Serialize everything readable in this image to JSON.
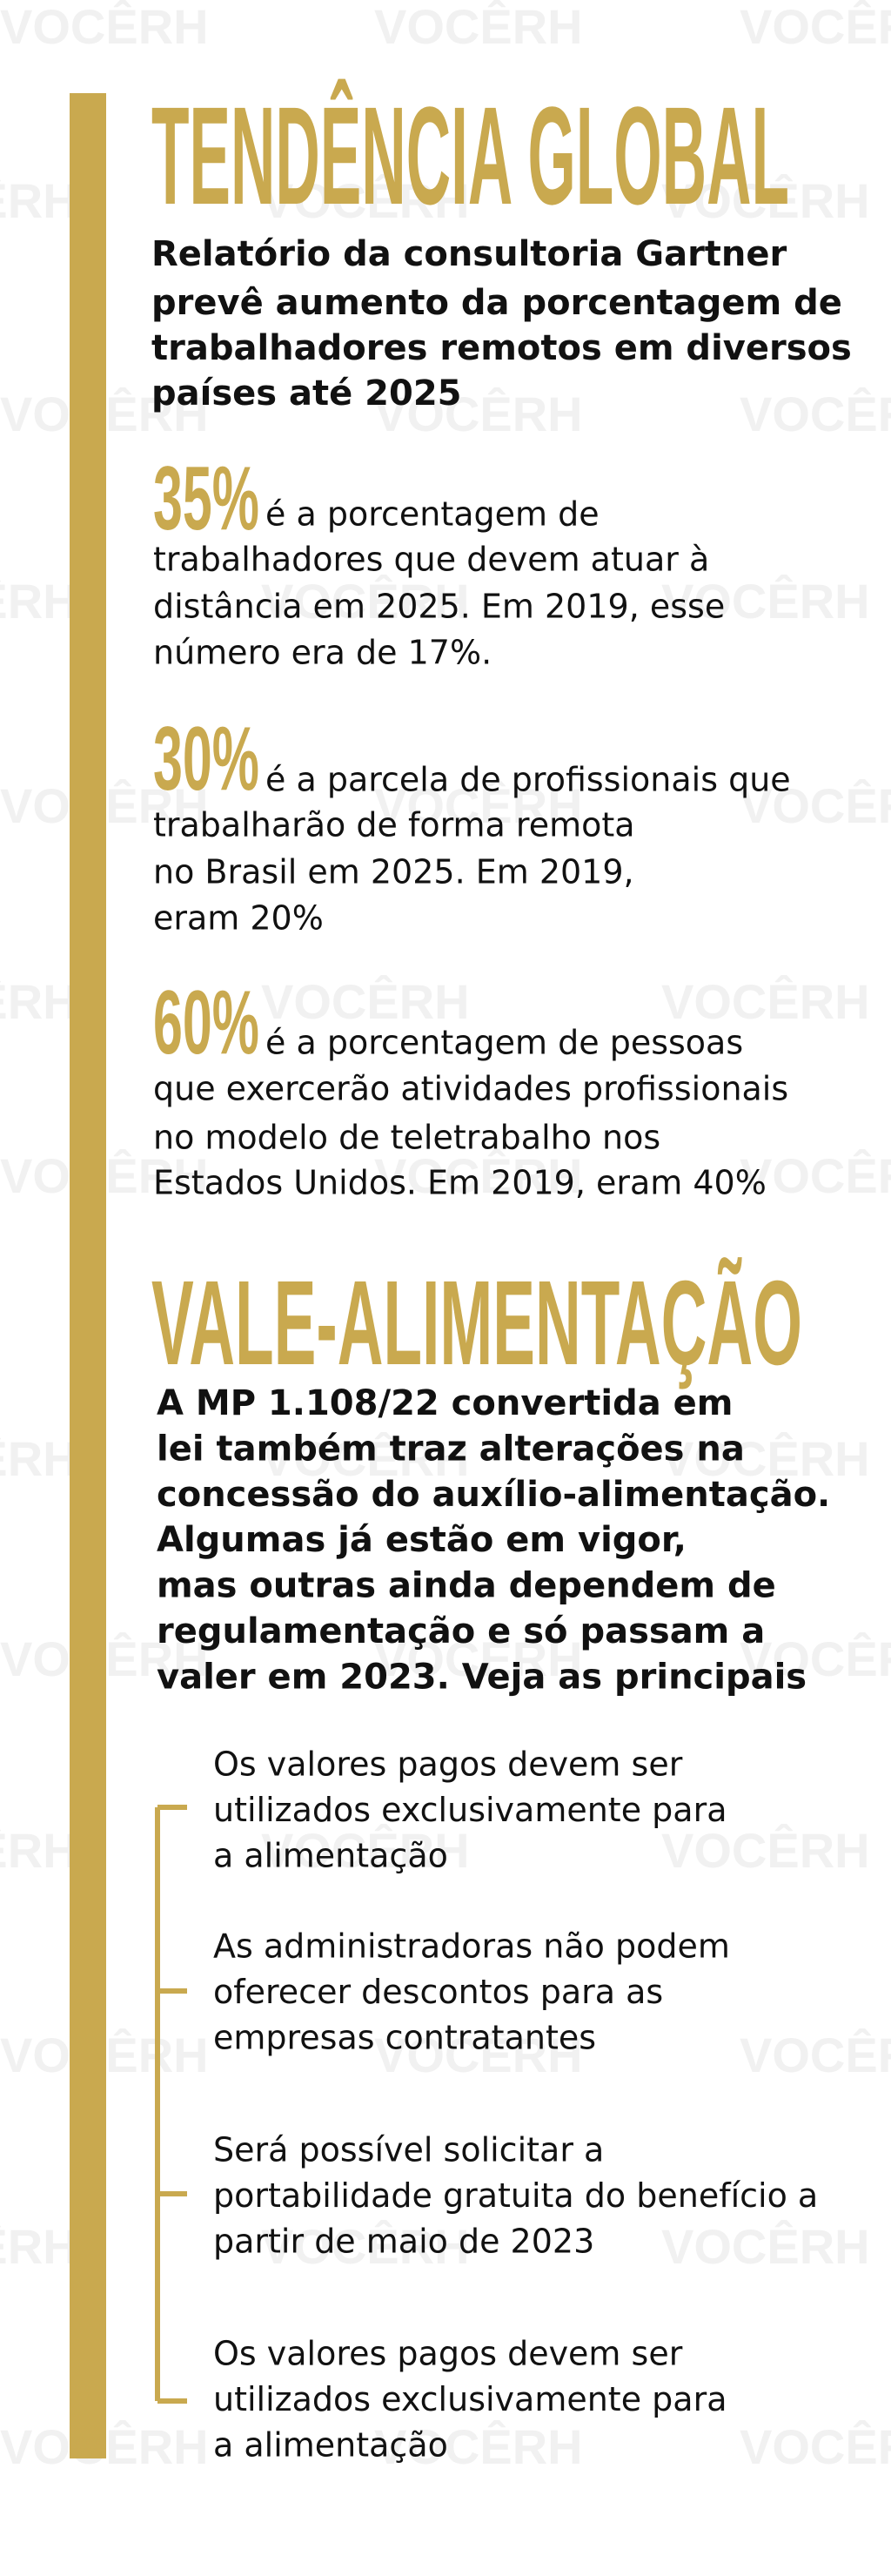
{
  "header": {
    "title": "TENDÊNCIA GLOBAL",
    "subtitle_lines": [
      "Relatório da consultoria Gartner",
      "prevê aumento da porcentagem de",
      "trabalhadores remotos em diversos",
      "países até 2025"
    ]
  },
  "stats": [
    {
      "number": "35%",
      "lines": [
        "é a porcentagem de",
        "trabalhadores que devem atuar à",
        "distância em 2025. Em 2019, esse",
        "número era de 17%."
      ]
    },
    {
      "number": "30%",
      "lines": [
        "é a parcela de profissionais que",
        "trabalharão de forma remota",
        "no Brasil em 2025. Em 2019,",
        "eram 20%"
      ]
    },
    {
      "number": "60%",
      "lines": [
        "é a porcentagem de pessoas",
        "que exercerão atividades profissionais",
        "no modelo de teletrabalho nos",
        "Estados Unidos. Em 2019, eram 40%"
      ]
    }
  ],
  "section": {
    "title": "VALE-ALIMENTAÇÃO",
    "intro_lines": [
      "A MP 1.108/22 convertida em",
      "lei também traz alterações na",
      "concessão do auxílio-alimentação.",
      "Algumas já estão em vigor,",
      "mas outras ainda dependem de",
      "regulamentação e só passam a",
      "valer em 2023. Veja as principais"
    ],
    "items": [
      {
        "lines": [
          "Os valores pagos devem ser",
          "utilizados exclusivamente para",
          "a alimentação"
        ]
      },
      {
        "lines": [
          "As administradoras não podem",
          "oferecer descontos para as",
          "empresas contratantes"
        ]
      },
      {
        "lines": [
          "Será possível solicitar a",
          "portabilidade gratuita do benefício a",
          "partir de maio de 2023"
        ]
      },
      {
        "lines": [
          "Os valores pagos devem ser",
          "utilizados exclusivamente para",
          "a alimentação"
        ]
      }
    ]
  },
  "watermark": "VOCÊRH"
}
